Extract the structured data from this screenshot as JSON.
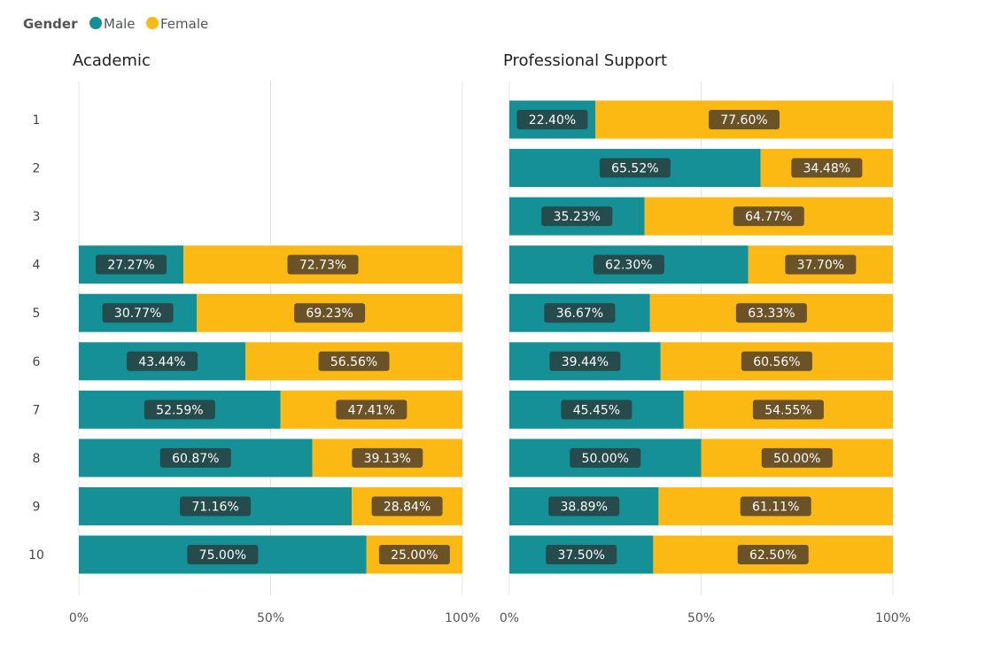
{
  "chart_data": [
    {
      "type": "bar",
      "stacked": true,
      "orientation": "horizontal",
      "title": "Academic",
      "categories": [
        "1",
        "2",
        "3",
        "4",
        "5",
        "6",
        "7",
        "8",
        "9",
        "10"
      ],
      "series": [
        {
          "name": "Male",
          "values": [
            null,
            null,
            null,
            27.27,
            30.77,
            43.44,
            52.59,
            60.87,
            71.16,
            75.0
          ]
        },
        {
          "name": "Female",
          "values": [
            null,
            null,
            null,
            72.73,
            69.23,
            56.56,
            47.41,
            39.13,
            28.84,
            25.0
          ]
        }
      ],
      "xlim": [
        0,
        100
      ],
      "xticks": [
        "0%",
        "50%",
        "100%"
      ],
      "grid": true
    },
    {
      "type": "bar",
      "stacked": true,
      "orientation": "horizontal",
      "title": "Professional Support",
      "categories": [
        "1",
        "2",
        "3",
        "4",
        "5",
        "6",
        "7",
        "8",
        "9",
        "10"
      ],
      "series": [
        {
          "name": "Male",
          "values": [
            22.4,
            65.52,
            35.23,
            62.3,
            36.67,
            39.44,
            45.45,
            50.0,
            38.89,
            37.5
          ]
        },
        {
          "name": "Female",
          "values": [
            77.6,
            34.48,
            64.77,
            37.7,
            63.33,
            60.56,
            54.55,
            50.0,
            61.11,
            62.5
          ]
        }
      ],
      "xlim": [
        0,
        100
      ],
      "xticks": [
        "0%",
        "50%",
        "100%"
      ],
      "grid": true
    }
  ],
  "legend": {
    "title": "Gender",
    "position": "top-left",
    "items": [
      {
        "label": "Male",
        "color": "#159096"
      },
      {
        "label": "Female",
        "color": "#FDB913"
      }
    ]
  },
  "colors": {
    "male": "#159096",
    "female": "#FDB913",
    "male_label_bg": "#254B4D",
    "female_label_bg": "#6B5327"
  }
}
